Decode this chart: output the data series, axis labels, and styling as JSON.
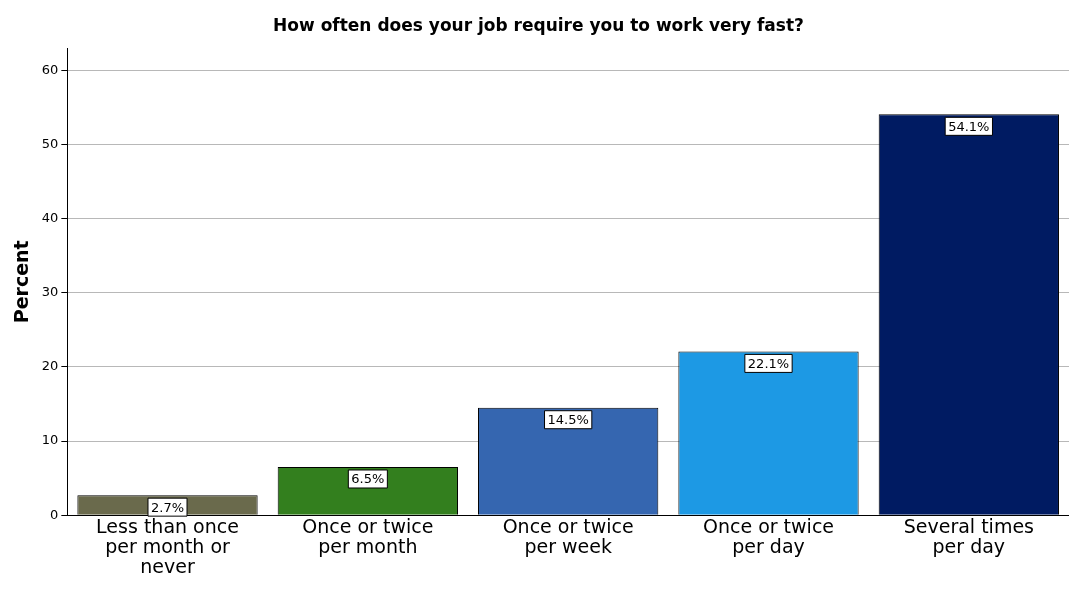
{
  "chart_data": {
    "type": "bar",
    "title": "How often does your job require you to work very fast?",
    "ylabel": "Percent",
    "categories": [
      "Less than once per month or never",
      "Once or twice per month",
      "Once or twice per week",
      "Once or twice per day",
      "Several times per day"
    ],
    "values": [
      2.7,
      6.5,
      14.5,
      22.1,
      54.1
    ],
    "colors": [
      "#6a6a4c",
      "#337f1e",
      "#3566b0",
      "#1d99e4",
      "#001b62"
    ],
    "value_labels": [
      "2.7%",
      "6.5%",
      "14.5%",
      "22.1%",
      "54.1%"
    ],
    "ylim": [
      0,
      63
    ],
    "yticks": [
      0,
      10,
      20,
      30,
      40,
      50,
      60
    ],
    "grid": "y"
  }
}
